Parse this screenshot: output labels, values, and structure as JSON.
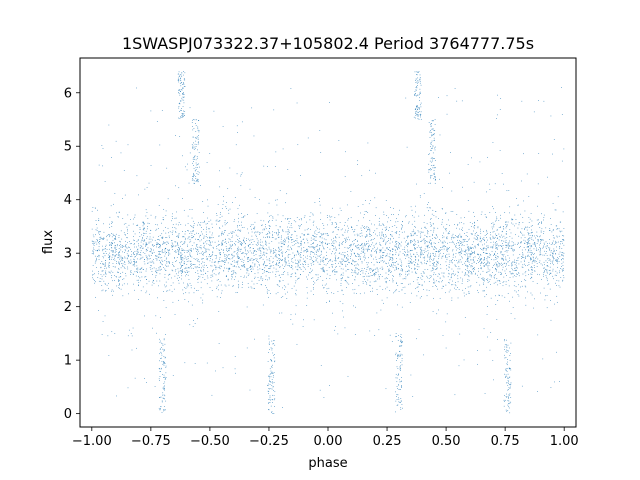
{
  "chart_data": {
    "type": "scatter",
    "title": "1SWASPJ073322.37+105802.4 Period 3764777.75s",
    "xlabel": "phase",
    "ylabel": "flux",
    "xlim": [
      -1.05,
      1.05
    ],
    "ylim": [
      -0.25,
      6.65
    ],
    "xticks": [
      -1.0,
      -0.75,
      -0.5,
      -0.25,
      0.0,
      0.25,
      0.5,
      0.75,
      1.0
    ],
    "xtick_labels": [
      "−1.00",
      "−0.75",
      "−0.50",
      "−0.25",
      "0.00",
      "0.25",
      "0.50",
      "0.75",
      "1.00"
    ],
    "yticks": [
      0,
      1,
      2,
      3,
      4,
      5,
      6
    ],
    "ytick_labels": [
      "0",
      "1",
      "2",
      "3",
      "4",
      "5",
      "6"
    ],
    "grid": false,
    "marker_color": "#1f77b4",
    "x_range": [
      -1.0,
      1.0
    ],
    "baseline_flux": 3.0,
    "flux_range": [
      0.0,
      6.4
    ],
    "periodic_in_phase": 1.0,
    "features": [
      {
        "phase": 0.44,
        "flux_range": [
          4.3,
          5.5
        ]
      },
      {
        "phase": -0.56,
        "flux_range": [
          4.3,
          5.5
        ]
      },
      {
        "phase": 0.3,
        "flux_range": [
          0.0,
          1.5
        ]
      },
      {
        "phase": -0.7,
        "flux_range": [
          0.0,
          1.5
        ]
      },
      {
        "phase": 0.76,
        "flux_range": [
          0.0,
          1.4
        ]
      },
      {
        "phase": -0.24,
        "flux_range": [
          0.0,
          1.4
        ]
      },
      {
        "phase": 0.38,
        "flux_range": [
          5.5,
          6.4
        ]
      },
      {
        "phase": -0.62,
        "flux_range": [
          5.5,
          6.4
        ]
      }
    ]
  }
}
